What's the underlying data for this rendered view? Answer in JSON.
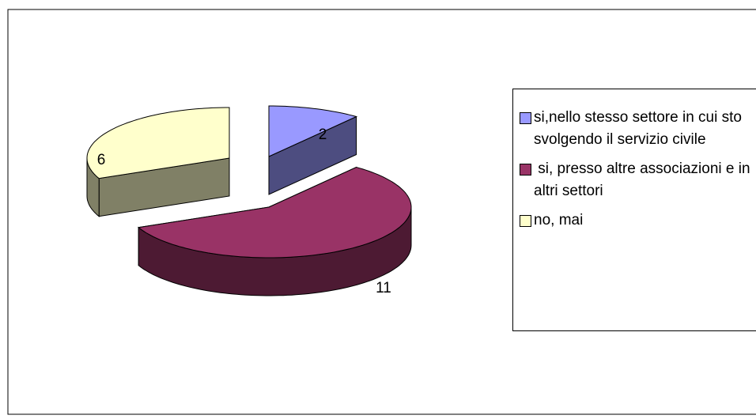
{
  "chart_data": {
    "type": "pie",
    "pie_3d": true,
    "categories": [
      "si,nello stesso settore in cui sto svolgendo il servizio civile",
      " si, presso altre associazioni e in altri settori",
      "no, mai"
    ],
    "values": [
      2,
      11,
      6
    ],
    "colors": [
      "#9999ff",
      "#993366",
      "#ffffcc"
    ],
    "legend": "right"
  }
}
